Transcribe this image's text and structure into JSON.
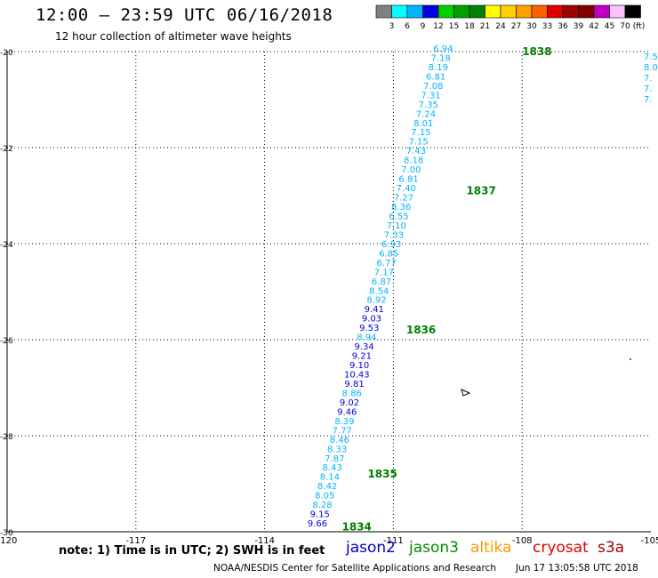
{
  "header": {
    "title": "12:00 – 23:59 UTC 06/16/2018",
    "subtitle": "12 hour collection of altimeter wave heights"
  },
  "colorbar": {
    "labels": [
      "3",
      "6",
      "9",
      "12",
      "15",
      "18",
      "21",
      "24",
      "27",
      "30",
      "33",
      "36",
      "39",
      "42",
      "45",
      "70",
      "(ft)"
    ],
    "colors": [
      "#808080",
      "#00ffff",
      "#00b4ff",
      "#0000e0",
      "#00d000",
      "#00a000",
      "#008000",
      "#ffff00",
      "#ffd000",
      "#ffa000",
      "#ff6000",
      "#e00000",
      "#a00000",
      "#800000",
      "#c000c0",
      "#ffc0ff",
      "#000000"
    ]
  },
  "chart_data": {
    "type": "scatter",
    "title": "12:00 – 23:59 UTC 06/16/2018",
    "subtitle": "12 hour collection of altimeter wave heights",
    "xlim": [
      -120,
      -105
    ],
    "ylim": [
      -30,
      -20
    ],
    "x_ticks": [
      "-120",
      "-117",
      "-114",
      "-111",
      "-108",
      "-105"
    ],
    "y_ticks": [
      "-20",
      "-22",
      "-24",
      "-26",
      "-28",
      "-30"
    ],
    "grid": true,
    "units": "ft",
    "track": {
      "values": [
        "9.66",
        "9.15",
        "8.28",
        "8.05",
        "8.42",
        "8.14",
        "8.43",
        "7.87",
        "8.33",
        "8.46",
        "7.77",
        "8.39",
        "9.46",
        "9.02",
        "8.86",
        "9.81",
        "10.43",
        "9.10",
        "9.21",
        "9.34",
        "8.94",
        "9.53",
        "9.03",
        "9.41",
        "8.92",
        "8.54",
        "6.87",
        "7.17",
        "6.77",
        "6.85",
        "6.93",
        "7.33",
        "7.10",
        "6.55",
        "8.36",
        "7.27",
        "7.40",
        "6.81",
        "7.00",
        "8.18",
        "7.43",
        "7.15",
        "7.15",
        "8.01",
        "7.24",
        "7.35",
        "7.31",
        "7.08",
        "6.81",
        "8.19",
        "7.18",
        "6.94"
      ],
      "start": {
        "lon": -112.77,
        "lat": -29.89
      },
      "end": {
        "lon": -109.84,
        "lat": -20.0
      }
    },
    "times": [
      {
        "label": "1834",
        "lon": -112.2,
        "lat": -29.9
      },
      {
        "label": "1835",
        "lon": -111.6,
        "lat": -28.8
      },
      {
        "label": "1836",
        "lon": -110.7,
        "lat": -25.8
      },
      {
        "label": "1837",
        "lon": -109.3,
        "lat": -22.9
      },
      {
        "label": "1838",
        "lon": -108.0,
        "lat": -20.0
      }
    ],
    "edge_values": [
      "7.5",
      "8.0",
      "7.",
      "7.",
      "7."
    ]
  },
  "footer": {
    "note": "note:  1)  Time is in UTC;  2)  SWH is in feet",
    "satellites": [
      {
        "name": "jason2",
        "color": "#0000c8"
      },
      {
        "name": "jason3",
        "color": "#008c00"
      },
      {
        "name": "altika",
        "color": "#ff9900"
      },
      {
        "name": "cryosat",
        "color": "#e00000"
      },
      {
        "name": "s3a",
        "color": "#a00000"
      }
    ],
    "credit": "NOAA/NESDIS Center for Satellite Applications and Research",
    "timestamp": "Jun 17 13:05:58 UTC 2018"
  }
}
